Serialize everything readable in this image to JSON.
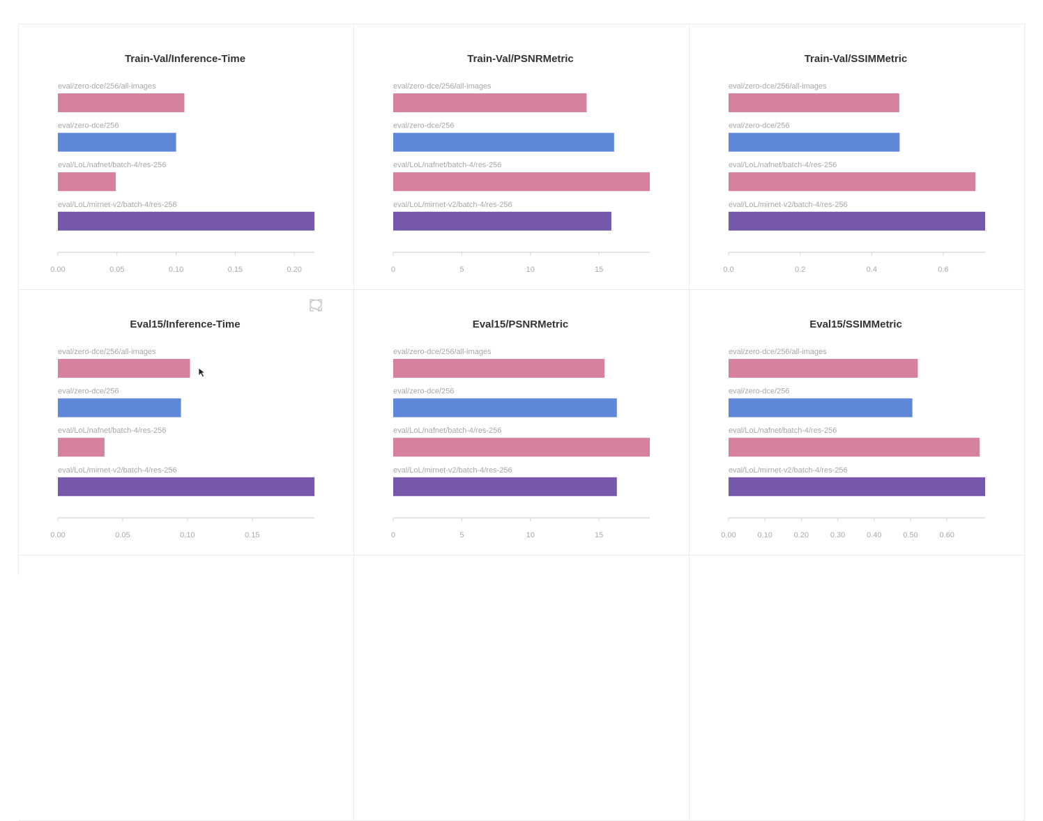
{
  "colors": {
    "pink": "#d6829d",
    "blue": "#5f87d8",
    "purple": "#7558a9"
  },
  "icons": {
    "fullscreen": "fullscreen-icon",
    "comment": "comment-icon",
    "cursor": "mouse-cursor-icon"
  },
  "chart_data": [
    {
      "type": "bar",
      "orientation": "horizontal",
      "title": "Train-Val/Inference-Time",
      "categories": [
        "eval/zero-dce/256/all-images",
        "eval/zero-dce/256",
        "eval/LoL/nafnet/batch-4/res-256",
        "eval/LoL/mirnet-v2/batch-4/res-256"
      ],
      "values": [
        0.107,
        0.1,
        0.049,
        0.217
      ],
      "bar_colors": [
        "pink",
        "blue",
        "pink",
        "purple"
      ],
      "xlim": [
        0,
        0.217
      ],
      "ticks": [
        0,
        0.05,
        0.1,
        0.15,
        0.2
      ],
      "tick_labels": [
        "0.00",
        "0.05",
        "0.10",
        "0.15",
        "0.20"
      ]
    },
    {
      "type": "bar",
      "orientation": "horizontal",
      "title": "Train-Val/PSNRMetric",
      "categories": [
        "eval/zero-dce/256/all-images",
        "eval/zero-dce/256",
        "eval/LoL/nafnet/batch-4/res-256",
        "eval/LoL/mirnet-v2/batch-4/res-256"
      ],
      "values": [
        14.1,
        16.1,
        18.7,
        15.9
      ],
      "bar_colors": [
        "pink",
        "blue",
        "pink",
        "purple"
      ],
      "xlim": [
        0,
        18.7
      ],
      "ticks": [
        0,
        5,
        10,
        15
      ],
      "tick_labels": [
        "0",
        "5",
        "10",
        "15"
      ]
    },
    {
      "type": "bar",
      "orientation": "horizontal",
      "title": "Train-Val/SSIMMetric",
      "categories": [
        "eval/zero-dce/256/all-images",
        "eval/zero-dce/256",
        "eval/LoL/nafnet/batch-4/res-256",
        "eval/LoL/mirnet-v2/batch-4/res-256"
      ],
      "values": [
        0.477,
        0.478,
        0.69,
        0.717
      ],
      "bar_colors": [
        "pink",
        "blue",
        "pink",
        "purple"
      ],
      "xlim": [
        0,
        0.717
      ],
      "ticks": [
        0,
        0.2,
        0.4,
        0.6
      ],
      "tick_labels": [
        "0.0",
        "0.2",
        "0.4",
        "0.6"
      ]
    },
    {
      "type": "bar",
      "orientation": "horizontal",
      "title": "Eval15/Inference-Time",
      "categories": [
        "eval/zero-dce/256/all-images",
        "eval/zero-dce/256",
        "eval/LoL/nafnet/batch-4/res-256",
        "eval/LoL/mirnet-v2/batch-4/res-256"
      ],
      "values": [
        0.102,
        0.095,
        0.036,
        0.198
      ],
      "bar_colors": [
        "pink",
        "blue",
        "pink",
        "purple"
      ],
      "xlim": [
        0,
        0.198
      ],
      "ticks": [
        0,
        0.05,
        0.1,
        0.15
      ],
      "tick_labels": [
        "0.00",
        "0.05",
        "0.10",
        "0.15"
      ]
    },
    {
      "type": "bar",
      "orientation": "horizontal",
      "title": "Eval15/PSNRMetric",
      "categories": [
        "eval/zero-dce/256/all-images",
        "eval/zero-dce/256",
        "eval/LoL/nafnet/batch-4/res-256",
        "eval/LoL/mirnet-v2/batch-4/res-256"
      ],
      "values": [
        15.4,
        16.3,
        18.7,
        16.3
      ],
      "bar_colors": [
        "pink",
        "blue",
        "pink",
        "purple"
      ],
      "xlim": [
        0,
        18.7
      ],
      "ticks": [
        0,
        5,
        10,
        15
      ],
      "tick_labels": [
        "0",
        "5",
        "10",
        "15"
      ]
    },
    {
      "type": "bar",
      "orientation": "horizontal",
      "title": "Eval15/SSIMMetric",
      "categories": [
        "eval/zero-dce/256/all-images",
        "eval/zero-dce/256",
        "eval/LoL/nafnet/batch-4/res-256",
        "eval/LoL/mirnet-v2/batch-4/res-256"
      ],
      "values": [
        0.52,
        0.505,
        0.69,
        0.705
      ],
      "bar_colors": [
        "pink",
        "blue",
        "pink",
        "purple"
      ],
      "xlim": [
        0,
        0.705
      ],
      "ticks": [
        0,
        0.1,
        0.2,
        0.3,
        0.4,
        0.5,
        0.6
      ],
      "tick_labels": [
        "0.00",
        "0.10",
        "0.20",
        "0.30",
        "0.40",
        "0.50",
        "0.60"
      ]
    }
  ]
}
